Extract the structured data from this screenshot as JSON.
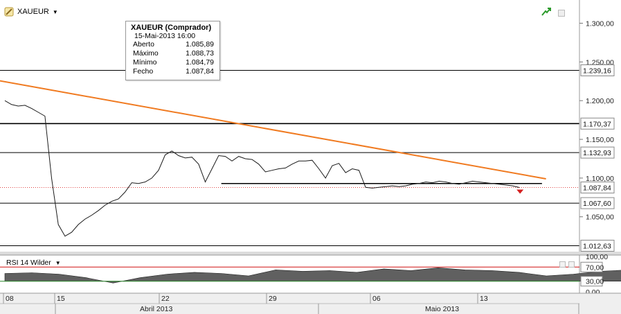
{
  "symbol": {
    "name": "XAUEUR"
  },
  "tooltip": {
    "title": "XAUEUR (Comprador)",
    "date": "15-Mai-2013 16:00",
    "rows": [
      {
        "label": "Aberto",
        "value": "1.085,89"
      },
      {
        "label": "Máximo",
        "value": "1.088,73"
      },
      {
        "label": "Mínimo",
        "value": "1.084,79"
      },
      {
        "label": "Fecho",
        "value": "1.087,84"
      }
    ]
  },
  "rsi": {
    "label": "RSI 14 Wilder"
  },
  "colors": {
    "trendline": "#f07a20",
    "rsi_upper": "#d01010",
    "rsi_lower": "#2c8a2c",
    "current_price_line": "#e04040"
  },
  "chart_data": [
    {
      "type": "line",
      "title": "XAUEUR",
      "ylim": [
        1005,
        1330
      ],
      "y_ticks": [
        "1.300,00",
        "1.250,00",
        "1.200,00",
        "1.150,00",
        "1.100,00",
        "1.050,00"
      ],
      "x_ticks": [
        "08",
        "15",
        "22",
        "29",
        "06",
        "13"
      ],
      "x_month_labels": [
        "Abril 2013",
        "Maio 2013"
      ],
      "x": [
        0,
        0.5,
        1,
        1.5,
        2,
        2.5,
        3,
        3.5,
        4,
        4.5,
        5,
        5.5,
        6,
        6.5,
        7,
        7.5,
        8,
        8.5,
        9,
        9.5,
        10,
        10.5,
        11,
        11.5,
        12,
        12.5,
        13,
        13.5,
        14,
        14.5,
        15,
        15.5,
        16,
        16.5,
        17,
        17.5,
        18,
        18.5,
        19,
        19.5,
        20,
        20.5,
        21,
        21.5,
        22,
        22.5,
        23,
        23.5,
        24,
        24.5,
        25,
        25.5,
        26,
        26.5,
        27,
        27.5,
        28,
        28.5,
        29,
        29.5,
        30,
        30.5,
        31,
        31.5,
        32,
        32.5,
        33,
        33.5,
        34,
        34.5,
        35,
        35.5,
        36,
        36.5,
        37,
        37.5,
        38,
        38.5
      ],
      "close": [
        1200,
        1195,
        1193,
        1194,
        1190,
        1185,
        1180,
        1100,
        1040,
        1025,
        1030,
        1040,
        1047,
        1052,
        1058,
        1065,
        1070,
        1073,
        1082,
        1094,
        1093,
        1095,
        1100,
        1110,
        1130,
        1135,
        1129,
        1126,
        1127,
        1118,
        1095,
        1112,
        1129,
        1128,
        1122,
        1128,
        1125,
        1124,
        1118,
        1108,
        1110,
        1112,
        1113,
        1118,
        1122,
        1122,
        1123,
        1112,
        1100,
        1116,
        1119,
        1107,
        1112,
        1110,
        1088,
        1087,
        1088,
        1089,
        1090,
        1089,
        1090,
        1092,
        1093,
        1095,
        1094,
        1096,
        1095,
        1093,
        1092,
        1094,
        1096,
        1095,
        1094,
        1093,
        1092,
        1091,
        1090,
        1087.84
      ],
      "horizontal_levels": [
        {
          "value": 1239.16,
          "label": "1.239,16"
        },
        {
          "value": 1170.37,
          "label": "1.170,37"
        },
        {
          "value": 1132.93,
          "label": "1.132,93"
        },
        {
          "value": 1087.84,
          "label": "1.087,84"
        },
        {
          "value": 1067.6,
          "label": "1.067,60"
        },
        {
          "value": 1012.63,
          "label": "1.012,63"
        }
      ],
      "trendline": [
        [
          -0.5,
          1226
        ],
        [
          40.5,
          1099
        ]
      ]
    },
    {
      "type": "area",
      "title": "RSI 14 Wilder",
      "ylim": [
        0,
        100
      ],
      "y_ticks": [
        "100,00",
        "70,00",
        "30,00",
        "0,00"
      ],
      "levels": [
        70,
        30
      ],
      "x": [
        0,
        1,
        2,
        3,
        4,
        5,
        6,
        7,
        8,
        9,
        10,
        11,
        12,
        13,
        14,
        15,
        16,
        17,
        18,
        19,
        20,
        21,
        22,
        23,
        24,
        25,
        26,
        27,
        28,
        29,
        30,
        31,
        32,
        33,
        34,
        35,
        36,
        37,
        38
      ],
      "values": [
        52,
        54,
        50,
        40,
        25,
        40,
        50,
        55,
        52,
        45,
        62,
        58,
        60,
        55,
        65,
        60,
        68,
        62,
        60,
        55,
        45,
        50,
        58,
        62,
        52,
        60,
        64,
        45,
        30,
        52,
        55,
        50,
        58,
        60,
        54,
        56,
        62,
        48,
        44
      ]
    }
  ]
}
